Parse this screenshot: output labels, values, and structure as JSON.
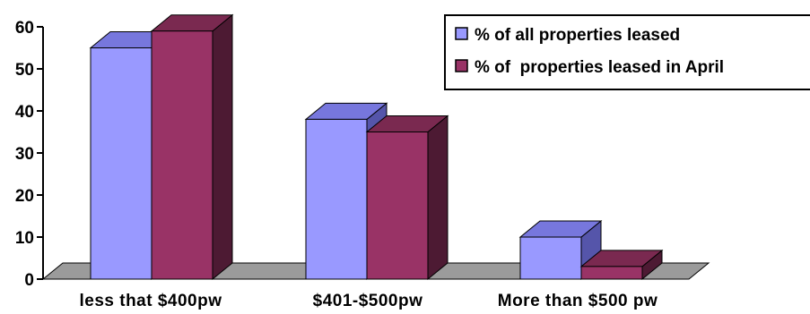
{
  "chart_data": {
    "type": "bar",
    "categories": [
      "less that $400pw",
      "$401-$500pw",
      "More than $500 pw"
    ],
    "series": [
      {
        "name": "% of all properties leased",
        "values": [
          55,
          38,
          10
        ]
      },
      {
        "name": "% of  properties leased in April",
        "values": [
          59,
          35,
          3
        ]
      }
    ],
    "ylim": [
      0,
      60
    ],
    "yticks": [
      0,
      10,
      20,
      30,
      40,
      50,
      60
    ],
    "grid": false,
    "legend_position": "top-right",
    "style": "3d-clustered-column"
  },
  "colors": {
    "series": [
      {
        "front": "#9999FF",
        "top": "#7777DD",
        "side": "#5555AA"
      },
      {
        "front": "#993366",
        "top": "#7A2950",
        "side": "#4D1A33"
      }
    ],
    "floor": "#9B9B9B",
    "axis": "#000000"
  }
}
